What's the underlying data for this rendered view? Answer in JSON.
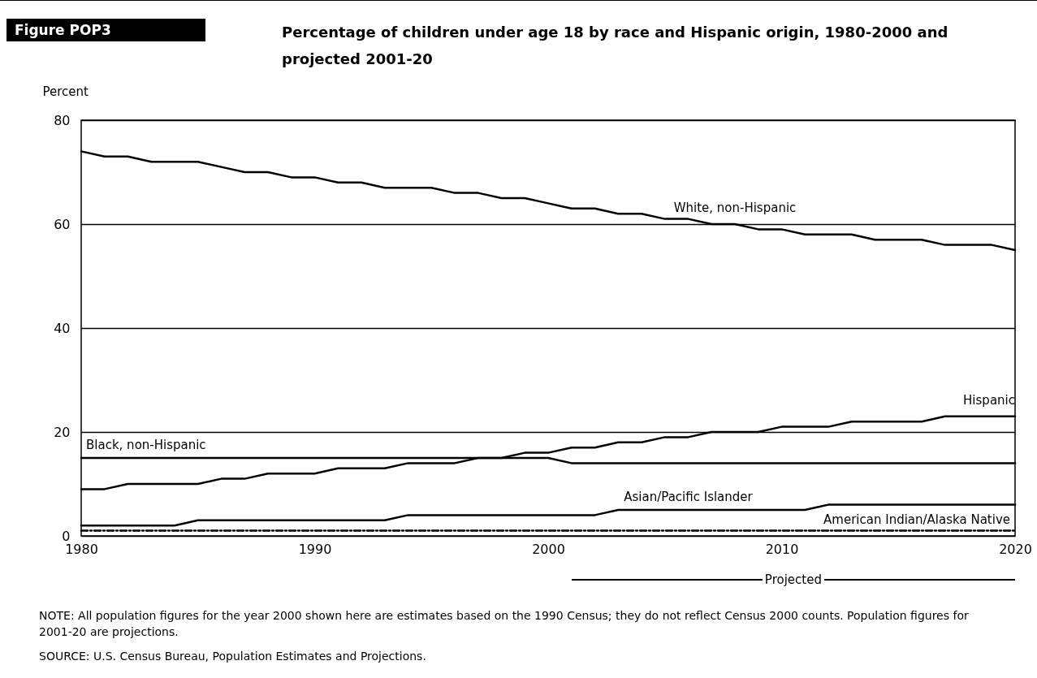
{
  "chart_data": {
    "type": "line",
    "title": "Percentage of children under age 18 by race and Hispanic origin, 1980-2000 and projected 2001-20",
    "ylabel": "Percent",
    "x": [
      1980,
      1981,
      1982,
      1983,
      1984,
      1985,
      1986,
      1987,
      1988,
      1989,
      1990,
      1991,
      1992,
      1993,
      1994,
      1995,
      1996,
      1997,
      1998,
      1999,
      2000,
      2001,
      2002,
      2003,
      2004,
      2005,
      2006,
      2007,
      2008,
      2009,
      2010,
      2011,
      2012,
      2013,
      2014,
      2015,
      2016,
      2017,
      2018,
      2019,
      2020
    ],
    "series": [
      {
        "name": "White, non-Hispanic",
        "color": "#000000",
        "values": [
          74,
          73,
          73,
          72,
          72,
          72,
          71,
          70,
          70,
          69,
          69,
          68,
          68,
          67,
          67,
          67,
          66,
          66,
          65,
          65,
          64,
          63,
          63,
          62,
          62,
          61,
          61,
          60,
          60,
          59,
          59,
          58,
          58,
          58,
          57,
          57,
          57,
          56,
          56,
          56,
          55
        ]
      },
      {
        "name": "Hispanic",
        "color": "#000000",
        "values": [
          9,
          9,
          10,
          10,
          10,
          10,
          11,
          11,
          12,
          12,
          12,
          13,
          13,
          13,
          14,
          14,
          14,
          15,
          15,
          16,
          16,
          17,
          17,
          18,
          18,
          19,
          19,
          20,
          20,
          20,
          21,
          21,
          21,
          22,
          22,
          22,
          22,
          23,
          23,
          23,
          23
        ]
      },
      {
        "name": "Black, non-Hispanic",
        "color": "#000000",
        "values": [
          15,
          15,
          15,
          15,
          15,
          15,
          15,
          15,
          15,
          15,
          15,
          15,
          15,
          15,
          15,
          15,
          15,
          15,
          15,
          15,
          15,
          14,
          14,
          14,
          14,
          14,
          14,
          14,
          14,
          14,
          14,
          14,
          14,
          14,
          14,
          14,
          14,
          14,
          14,
          14,
          14
        ]
      },
      {
        "name": "Asian/Pacific Islander",
        "color": "#000000",
        "values": [
          2,
          2,
          2,
          2,
          2,
          3,
          3,
          3,
          3,
          3,
          3,
          3,
          3,
          3,
          4,
          4,
          4,
          4,
          4,
          4,
          4,
          4,
          4,
          5,
          5,
          5,
          5,
          5,
          5,
          5,
          5,
          5,
          6,
          6,
          6,
          6,
          6,
          6,
          6,
          6,
          6
        ]
      },
      {
        "name": "American Indian/Alaska Native",
        "color": "#000000",
        "line_style": "dashed",
        "values": [
          1,
          1,
          1,
          1,
          1,
          1,
          1,
          1,
          1,
          1,
          1,
          1,
          1,
          1,
          1,
          1,
          1,
          1,
          1,
          1,
          1,
          1,
          1,
          1,
          1,
          1,
          1,
          1,
          1,
          1,
          1,
          1,
          1,
          1,
          1,
          1,
          1,
          1,
          1,
          1,
          1
        ]
      }
    ],
    "xlim": [
      1980,
      2020
    ],
    "xticks": [
      1980,
      1990,
      2000,
      2010,
      2020
    ],
    "ylim": [
      0,
      80
    ],
    "yticks": [
      0,
      20,
      40,
      60,
      80
    ],
    "grid": "y",
    "annotations": [
      "Figure POP3",
      "Projected",
      "NOTE:  All population figures for the year 2000 shown here are estimates based on the 1990 Census; they do not reflect Census 2000 counts. Population figures for 2001-20 are projections.",
      "SOURCE: U.S. Census Bureau, Population Estimates and Projections."
    ]
  }
}
